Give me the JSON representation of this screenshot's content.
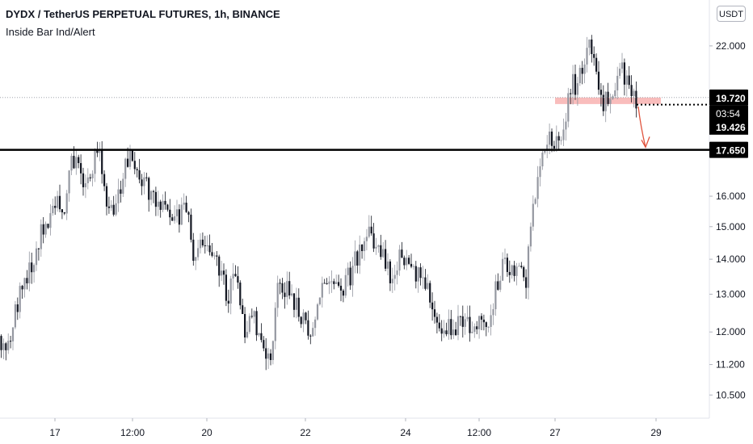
{
  "header": {
    "title": "DYDX / TetherUS PERPETUAL FUTURES, 1h, BINANCE",
    "indicator": "Inside Bar Ind/Alert",
    "currency": "USDT"
  },
  "colors": {
    "up_candle": "#9598a1",
    "down_candle": "#131722",
    "zone": "#f7a7a5",
    "arrow": "#e0533d",
    "level_line": "#000000",
    "axis_text": "#131722"
  },
  "chart_data": {
    "type": "candlestick",
    "symbol": "DYDX / TetherUS PERPETUAL FUTURES",
    "timeframe": "1h",
    "exchange": "BINANCE",
    "y_scale": "log",
    "ylim": [
      10.1,
      24.0
    ],
    "y_ticks": [
      "22.000",
      "16.000",
      "15.000",
      "14.000",
      "13.000",
      "12.000",
      "11.200",
      "10.500"
    ],
    "x_labels": [
      "17",
      "12:00",
      "20",
      "22",
      "24",
      "12:00",
      "27",
      "29"
    ],
    "price_labels": [
      {
        "value": 19.72,
        "text": "19.720"
      },
      {
        "value": 19.426,
        "text": "19.426"
      },
      {
        "value": 17.65,
        "text": "17.650"
      }
    ],
    "countdown": "03:54",
    "horizontal_level": 17.65,
    "zone": {
      "from": 19.45,
      "to": 19.72
    },
    "path": [
      [
        0,
        11.9
      ],
      [
        6,
        11.3
      ],
      [
        10,
        11.6
      ],
      [
        16,
        12.2
      ],
      [
        24,
        13.0
      ],
      [
        36,
        13.6
      ],
      [
        46,
        14.4
      ],
      [
        58,
        15.2
      ],
      [
        68,
        16.0
      ],
      [
        80,
        15.6
      ],
      [
        90,
        17.5
      ],
      [
        98,
        16.8
      ],
      [
        108,
        16.4
      ],
      [
        118,
        17.4
      ],
      [
        124,
        17.6
      ],
      [
        130,
        16.2
      ],
      [
        138,
        15.4
      ],
      [
        148,
        16.1
      ],
      [
        160,
        17.5
      ],
      [
        168,
        16.8
      ],
      [
        178,
        16.5
      ],
      [
        190,
        16.0
      ],
      [
        200,
        15.9
      ],
      [
        210,
        15.4
      ],
      [
        222,
        15.3
      ],
      [
        232,
        15.5
      ],
      [
        240,
        14.1
      ],
      [
        250,
        14.3
      ],
      [
        262,
        14.4
      ],
      [
        272,
        13.6
      ],
      [
        282,
        13.0
      ],
      [
        292,
        13.4
      ],
      [
        302,
        12.0
      ],
      [
        312,
        12.5
      ],
      [
        320,
        11.9
      ],
      [
        328,
        11.6
      ],
      [
        336,
        11.4
      ],
      [
        344,
        13.1
      ],
      [
        354,
        13.2
      ],
      [
        364,
        12.7
      ],
      [
        374,
        12.4
      ],
      [
        384,
        11.9
      ],
      [
        394,
        12.8
      ],
      [
        404,
        13.3
      ],
      [
        414,
        13.0
      ],
      [
        424,
        13.1
      ],
      [
        434,
        13.6
      ],
      [
        444,
        14.2
      ],
      [
        454,
        14.8
      ],
      [
        464,
        14.6
      ],
      [
        474,
        14.0
      ],
      [
        484,
        13.6
      ],
      [
        494,
        14.1
      ],
      [
        504,
        14.2
      ],
      [
        514,
        13.6
      ],
      [
        524,
        13.3
      ],
      [
        534,
        13.0
      ],
      [
        544,
        11.8
      ],
      [
        554,
        12.1
      ],
      [
        564,
        12.2
      ],
      [
        574,
        12.4
      ],
      [
        584,
        12.0
      ],
      [
        594,
        12.2
      ],
      [
        604,
        12.1
      ],
      [
        614,
        13.2
      ],
      [
        624,
        14.1
      ],
      [
        634,
        13.6
      ],
      [
        642,
        13.8
      ],
      [
        650,
        13.2
      ],
      [
        656,
        14.6
      ],
      [
        662,
        16.0
      ],
      [
        668,
        16.8
      ],
      [
        676,
        17.8
      ],
      [
        682,
        18.1
      ],
      [
        690,
        17.8
      ],
      [
        698,
        18.9
      ],
      [
        704,
        19.6
      ],
      [
        708,
        20.8
      ],
      [
        712,
        20.0
      ],
      [
        718,
        20.9
      ],
      [
        724,
        21.5
      ],
      [
        728,
        22.3
      ],
      [
        734,
        21.4
      ],
      [
        740,
        20.6
      ],
      [
        746,
        19.6
      ],
      [
        752,
        19.5
      ],
      [
        758,
        19.7
      ],
      [
        764,
        20.8
      ],
      [
        770,
        21.2
      ],
      [
        776,
        20.2
      ],
      [
        782,
        19.8
      ],
      [
        788,
        19.6
      ]
    ]
  }
}
